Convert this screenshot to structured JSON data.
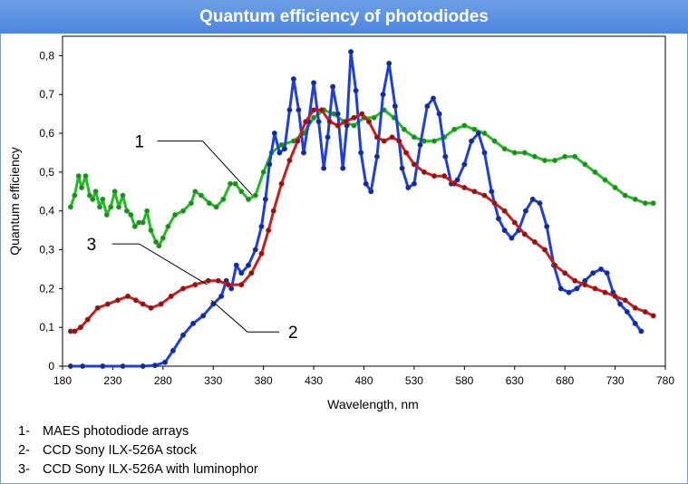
{
  "chart_data": {
    "type": "line",
    "title": "Quantum efficiency of photodiodes",
    "xlabel": "Wavelength, nm",
    "ylabel": "Quantum efficiency",
    "xlim": [
      180,
      780
    ],
    "ylim": [
      0,
      0.85
    ],
    "xticks": [
      180,
      230,
      280,
      330,
      380,
      430,
      480,
      530,
      580,
      630,
      680,
      730,
      780
    ],
    "yticks": [
      0,
      0.1,
      0.2,
      0.3,
      0.4,
      0.5,
      0.6,
      0.7,
      0.8
    ],
    "ytick_labels": [
      "0",
      "0,1",
      "0,2",
      "0,3",
      "0,4",
      "0,5",
      "0,6",
      "0,7",
      "0,8"
    ],
    "grid": false,
    "series": [
      {
        "name": "1",
        "color": "#22bb22",
        "marker_color": "#2e7d2e",
        "values": [
          [
            188,
            0.41
          ],
          [
            192,
            0.44
          ],
          [
            196,
            0.49
          ],
          [
            199,
            0.46
          ],
          [
            203,
            0.49
          ],
          [
            207,
            0.44
          ],
          [
            210,
            0.43
          ],
          [
            213,
            0.45
          ],
          [
            217,
            0.41
          ],
          [
            220,
            0.43
          ],
          [
            224,
            0.39
          ],
          [
            228,
            0.41
          ],
          [
            232,
            0.45
          ],
          [
            236,
            0.41
          ],
          [
            240,
            0.44
          ],
          [
            244,
            0.4
          ],
          [
            248,
            0.39
          ],
          [
            252,
            0.36
          ],
          [
            256,
            0.37
          ],
          [
            260,
            0.37
          ],
          [
            264,
            0.4
          ],
          [
            268,
            0.35
          ],
          [
            273,
            0.32
          ],
          [
            276,
            0.31
          ],
          [
            280,
            0.33
          ],
          [
            285,
            0.36
          ],
          [
            292,
            0.39
          ],
          [
            300,
            0.4
          ],
          [
            308,
            0.42
          ],
          [
            312,
            0.45
          ],
          [
            318,
            0.44
          ],
          [
            326,
            0.42
          ],
          [
            333,
            0.41
          ],
          [
            340,
            0.43
          ],
          [
            347,
            0.47
          ],
          [
            352,
            0.47
          ],
          [
            358,
            0.45
          ],
          [
            365,
            0.43
          ],
          [
            372,
            0.44
          ],
          [
            380,
            0.5
          ],
          [
            388,
            0.55
          ],
          [
            398,
            0.57
          ],
          [
            410,
            0.58
          ],
          [
            420,
            0.6
          ],
          [
            430,
            0.64
          ],
          [
            440,
            0.66
          ],
          [
            450,
            0.65
          ],
          [
            460,
            0.63
          ],
          [
            470,
            0.62
          ],
          [
            480,
            0.64
          ],
          [
            490,
            0.64
          ],
          [
            500,
            0.66
          ],
          [
            510,
            0.64
          ],
          [
            520,
            0.61
          ],
          [
            530,
            0.59
          ],
          [
            540,
            0.58
          ],
          [
            550,
            0.58
          ],
          [
            560,
            0.59
          ],
          [
            570,
            0.61
          ],
          [
            580,
            0.62
          ],
          [
            590,
            0.61
          ],
          [
            600,
            0.6
          ],
          [
            610,
            0.58
          ],
          [
            620,
            0.56
          ],
          [
            630,
            0.55
          ],
          [
            640,
            0.55
          ],
          [
            650,
            0.54
          ],
          [
            660,
            0.53
          ],
          [
            670,
            0.53
          ],
          [
            680,
            0.54
          ],
          [
            690,
            0.54
          ],
          [
            700,
            0.52
          ],
          [
            710,
            0.5
          ],
          [
            720,
            0.48
          ],
          [
            730,
            0.46
          ],
          [
            740,
            0.44
          ],
          [
            750,
            0.43
          ],
          [
            760,
            0.42
          ],
          [
            768,
            0.42
          ]
        ]
      },
      {
        "name": "2",
        "color": "#1f3fd9",
        "marker_color": "#1a2a7a",
        "values": [
          [
            188,
            0.0
          ],
          [
            200,
            0.0
          ],
          [
            220,
            0.0
          ],
          [
            240,
            0.0
          ],
          [
            260,
            0.0
          ],
          [
            272,
            0.002
          ],
          [
            282,
            0.01
          ],
          [
            290,
            0.04
          ],
          [
            300,
            0.08
          ],
          [
            310,
            0.11
          ],
          [
            320,
            0.13
          ],
          [
            330,
            0.16
          ],
          [
            338,
            0.18
          ],
          [
            343,
            0.22
          ],
          [
            348,
            0.2
          ],
          [
            353,
            0.26
          ],
          [
            358,
            0.24
          ],
          [
            365,
            0.26
          ],
          [
            372,
            0.3
          ],
          [
            378,
            0.36
          ],
          [
            382,
            0.43
          ],
          [
            386,
            0.52
          ],
          [
            391,
            0.6
          ],
          [
            396,
            0.55
          ],
          [
            401,
            0.56
          ],
          [
            406,
            0.66
          ],
          [
            410,
            0.74
          ],
          [
            415,
            0.66
          ],
          [
            420,
            0.55
          ],
          [
            425,
            0.63
          ],
          [
            430,
            0.73
          ],
          [
            435,
            0.63
          ],
          [
            440,
            0.51
          ],
          [
            444,
            0.59
          ],
          [
            449,
            0.72
          ],
          [
            454,
            0.65
          ],
          [
            459,
            0.51
          ],
          [
            463,
            0.62
          ],
          [
            467,
            0.81
          ],
          [
            472,
            0.71
          ],
          [
            477,
            0.55
          ],
          [
            482,
            0.47
          ],
          [
            487,
            0.45
          ],
          [
            493,
            0.54
          ],
          [
            499,
            0.7
          ],
          [
            505,
            0.78
          ],
          [
            511,
            0.67
          ],
          [
            518,
            0.51
          ],
          [
            524,
            0.46
          ],
          [
            530,
            0.47
          ],
          [
            536,
            0.57
          ],
          [
            543,
            0.67
          ],
          [
            549,
            0.69
          ],
          [
            555,
            0.65
          ],
          [
            561,
            0.54
          ],
          [
            567,
            0.47
          ],
          [
            573,
            0.48
          ],
          [
            580,
            0.52
          ],
          [
            587,
            0.58
          ],
          [
            594,
            0.6
          ],
          [
            600,
            0.55
          ],
          [
            607,
            0.45
          ],
          [
            614,
            0.38
          ],
          [
            620,
            0.35
          ],
          [
            627,
            0.33
          ],
          [
            634,
            0.35
          ],
          [
            641,
            0.4
          ],
          [
            648,
            0.43
          ],
          [
            655,
            0.42
          ],
          [
            662,
            0.36
          ],
          [
            669,
            0.26
          ],
          [
            676,
            0.2
          ],
          [
            684,
            0.19
          ],
          [
            692,
            0.2
          ],
          [
            700,
            0.22
          ],
          [
            708,
            0.24
          ],
          [
            716,
            0.25
          ],
          [
            722,
            0.24
          ],
          [
            728,
            0.19
          ],
          [
            735,
            0.16
          ],
          [
            742,
            0.14
          ],
          [
            750,
            0.11
          ],
          [
            756,
            0.09
          ]
        ]
      },
      {
        "name": "3",
        "color": "#c81e1e",
        "marker_color": "#7a1a1a",
        "values": [
          [
            188,
            0.09
          ],
          [
            192,
            0.09
          ],
          [
            198,
            0.1
          ],
          [
            205,
            0.12
          ],
          [
            215,
            0.15
          ],
          [
            225,
            0.16
          ],
          [
            235,
            0.17
          ],
          [
            245,
            0.18
          ],
          [
            253,
            0.17
          ],
          [
            260,
            0.16
          ],
          [
            268,
            0.15
          ],
          [
            278,
            0.16
          ],
          [
            288,
            0.18
          ],
          [
            300,
            0.2
          ],
          [
            312,
            0.21
          ],
          [
            325,
            0.22
          ],
          [
            335,
            0.22
          ],
          [
            345,
            0.21
          ],
          [
            358,
            0.21
          ],
          [
            368,
            0.24
          ],
          [
            378,
            0.29
          ],
          [
            385,
            0.35
          ],
          [
            390,
            0.4
          ],
          [
            398,
            0.47
          ],
          [
            406,
            0.53
          ],
          [
            414,
            0.58
          ],
          [
            422,
            0.63
          ],
          [
            430,
            0.66
          ],
          [
            438,
            0.66
          ],
          [
            446,
            0.63
          ],
          [
            454,
            0.62
          ],
          [
            462,
            0.63
          ],
          [
            470,
            0.64
          ],
          [
            478,
            0.65
          ],
          [
            485,
            0.63
          ],
          [
            493,
            0.59
          ],
          [
            500,
            0.58
          ],
          [
            508,
            0.59
          ],
          [
            515,
            0.58
          ],
          [
            522,
            0.55
          ],
          [
            530,
            0.52
          ],
          [
            540,
            0.5
          ],
          [
            550,
            0.49
          ],
          [
            560,
            0.49
          ],
          [
            570,
            0.47
          ],
          [
            580,
            0.46
          ],
          [
            590,
            0.45
          ],
          [
            600,
            0.44
          ],
          [
            610,
            0.42
          ],
          [
            620,
            0.4
          ],
          [
            630,
            0.37
          ],
          [
            640,
            0.34
          ],
          [
            650,
            0.32
          ],
          [
            660,
            0.3
          ],
          [
            670,
            0.26
          ],
          [
            680,
            0.24
          ],
          [
            690,
            0.22
          ],
          [
            700,
            0.21
          ],
          [
            710,
            0.2
          ],
          [
            720,
            0.19
          ],
          [
            730,
            0.18
          ],
          [
            740,
            0.17
          ],
          [
            750,
            0.15
          ],
          [
            760,
            0.14
          ],
          [
            768,
            0.13
          ]
        ]
      }
    ],
    "callouts": [
      {
        "label": "1",
        "anchor": [
          369,
          0.44
        ]
      },
      {
        "label": "2",
        "anchor": [
          328,
          0.17
        ]
      },
      {
        "label": "3",
        "anchor": [
          324,
          0.21
        ]
      }
    ],
    "legend_items": [
      {
        "num": "1-",
        "text": "MAES photodiode arrays"
      },
      {
        "num": "2-",
        "text": "CCD Sony ILX-526A stock"
      },
      {
        "num": "3-",
        "text": "CCD Sony ILX-526A with luminophor"
      }
    ]
  }
}
